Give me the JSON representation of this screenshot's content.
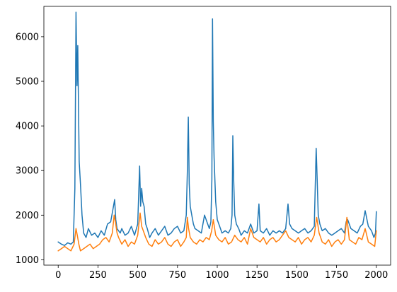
{
  "chart_data": {
    "type": "line",
    "title": "",
    "xlabel": "",
    "ylabel": "",
    "xlim": [
      -90,
      2090
    ],
    "ylim": [
      880,
      6680
    ],
    "xticks": [
      0,
      250,
      500,
      750,
      1000,
      1250,
      1500,
      1750,
      2000
    ],
    "yticks": [
      1000,
      2000,
      3000,
      4000,
      5000,
      6000
    ],
    "grid": false,
    "legend": null,
    "series": [
      {
        "color": "#1f77b4",
        "x": [
          0,
          20,
          40,
          60,
          80,
          95,
          105,
          112,
          118,
          123,
          127,
          132,
          140,
          150,
          160,
          175,
          190,
          210,
          230,
          250,
          270,
          290,
          310,
          330,
          345,
          355,
          362,
          370,
          380,
          390,
          400,
          420,
          440,
          460,
          480,
          500,
          512,
          518,
          525,
          532,
          540,
          550,
          560,
          575,
          590,
          610,
          630,
          650,
          670,
          690,
          710,
          730,
          750,
          770,
          790,
          805,
          812,
          818,
          824,
          830,
          840,
          850,
          860,
          880,
          900,
          920,
          940,
          950,
          960,
          966,
          970,
          975,
          980,
          990,
          1000,
          1015,
          1030,
          1050,
          1070,
          1085,
          1093,
          1098,
          1103,
          1110,
          1120,
          1135,
          1150,
          1170,
          1190,
          1210,
          1230,
          1250,
          1262,
          1270,
          1290,
          1310,
          1330,
          1350,
          1370,
          1390,
          1410,
          1430,
          1445,
          1455,
          1470,
          1490,
          1510,
          1530,
          1550,
          1570,
          1590,
          1610,
          1622,
          1628,
          1635,
          1645,
          1660,
          1680,
          1700,
          1720,
          1740,
          1760,
          1780,
          1800,
          1810,
          1820,
          1840,
          1860,
          1880,
          1900,
          1915,
          1930,
          1950,
          1970,
          1985,
          1995,
          2000
        ],
        "y": [
          1400,
          1350,
          1320,
          1380,
          1350,
          1400,
          2600,
          6550,
          4900,
          5800,
          4600,
          3200,
          2700,
          2000,
          1600,
          1500,
          1700,
          1550,
          1600,
          1500,
          1650,
          1550,
          1800,
          1850,
          2150,
          2350,
          1900,
          1700,
          1650,
          1600,
          1700,
          1550,
          1600,
          1750,
          1550,
          1800,
          3100,
          2200,
          2600,
          2300,
          2200,
          1800,
          1700,
          1500,
          1600,
          1700,
          1550,
          1650,
          1750,
          1550,
          1600,
          1700,
          1750,
          1600,
          1650,
          2000,
          2950,
          4200,
          2700,
          2200,
          2000,
          1800,
          1700,
          1650,
          1600,
          2000,
          1800,
          1700,
          1850,
          2800,
          6400,
          4100,
          3300,
          2300,
          1900,
          1750,
          1600,
          1650,
          1600,
          1700,
          2000,
          3780,
          2800,
          2000,
          1800,
          1700,
          1550,
          1650,
          1600,
          1800,
          1600,
          1650,
          2250,
          1650,
          1600,
          1700,
          1550,
          1650,
          1600,
          1650,
          1600,
          1700,
          2250,
          1800,
          1700,
          1650,
          1600,
          1650,
          1700,
          1600,
          1650,
          1750,
          3500,
          2800,
          2000,
          1800,
          1650,
          1700,
          1600,
          1550,
          1600,
          1650,
          1700,
          1600,
          1850,
          1900,
          1700,
          1650,
          1600,
          1750,
          1800,
          2100,
          1750,
          1650,
          1500,
          1600,
          2080
        ]
      },
      {
        "color": "#ff7f0e",
        "x": [
          0,
          20,
          40,
          60,
          80,
          100,
          112,
          120,
          130,
          140,
          160,
          180,
          200,
          220,
          240,
          260,
          280,
          300,
          320,
          340,
          352,
          360,
          370,
          380,
          400,
          420,
          440,
          460,
          480,
          500,
          515,
          525,
          535,
          550,
          570,
          590,
          610,
          630,
          650,
          670,
          690,
          710,
          730,
          750,
          770,
          790,
          805,
          812,
          820,
          830,
          850,
          870,
          890,
          910,
          930,
          950,
          965,
          975,
          990,
          1010,
          1030,
          1050,
          1070,
          1090,
          1110,
          1130,
          1150,
          1170,
          1190,
          1210,
          1230,
          1250,
          1270,
          1290,
          1310,
          1330,
          1350,
          1370,
          1390,
          1410,
          1430,
          1450,
          1470,
          1490,
          1510,
          1530,
          1550,
          1570,
          1590,
          1610,
          1625,
          1640,
          1660,
          1680,
          1700,
          1720,
          1740,
          1760,
          1780,
          1800,
          1815,
          1830,
          1850,
          1870,
          1890,
          1910,
          1930,
          1950,
          1970,
          1990,
          2000
        ],
        "y": [
          1200,
          1250,
          1300,
          1250,
          1200,
          1350,
          1700,
          1550,
          1350,
          1200,
          1250,
          1300,
          1350,
          1250,
          1300,
          1350,
          1450,
          1500,
          1400,
          1600,
          2000,
          1850,
          1600,
          1500,
          1350,
          1450,
          1300,
          1400,
          1350,
          1550,
          2050,
          1750,
          1650,
          1500,
          1350,
          1300,
          1450,
          1350,
          1400,
          1500,
          1350,
          1300,
          1400,
          1450,
          1300,
          1400,
          1500,
          1950,
          1700,
          1500,
          1400,
          1350,
          1450,
          1400,
          1500,
          1450,
          1650,
          1900,
          1550,
          1450,
          1400,
          1500,
          1350,
          1400,
          1550,
          1450,
          1400,
          1500,
          1350,
          1700,
          1500,
          1450,
          1400,
          1500,
          1350,
          1450,
          1500,
          1400,
          1450,
          1550,
          1650,
          1500,
          1450,
          1400,
          1500,
          1350,
          1450,
          1500,
          1400,
          1550,
          1950,
          1600,
          1400,
          1350,
          1450,
          1300,
          1400,
          1450,
          1350,
          1450,
          1950,
          1450,
          1400,
          1350,
          1500,
          1450,
          1700,
          1400,
          1350,
          1300,
          1650
        ]
      }
    ]
  }
}
